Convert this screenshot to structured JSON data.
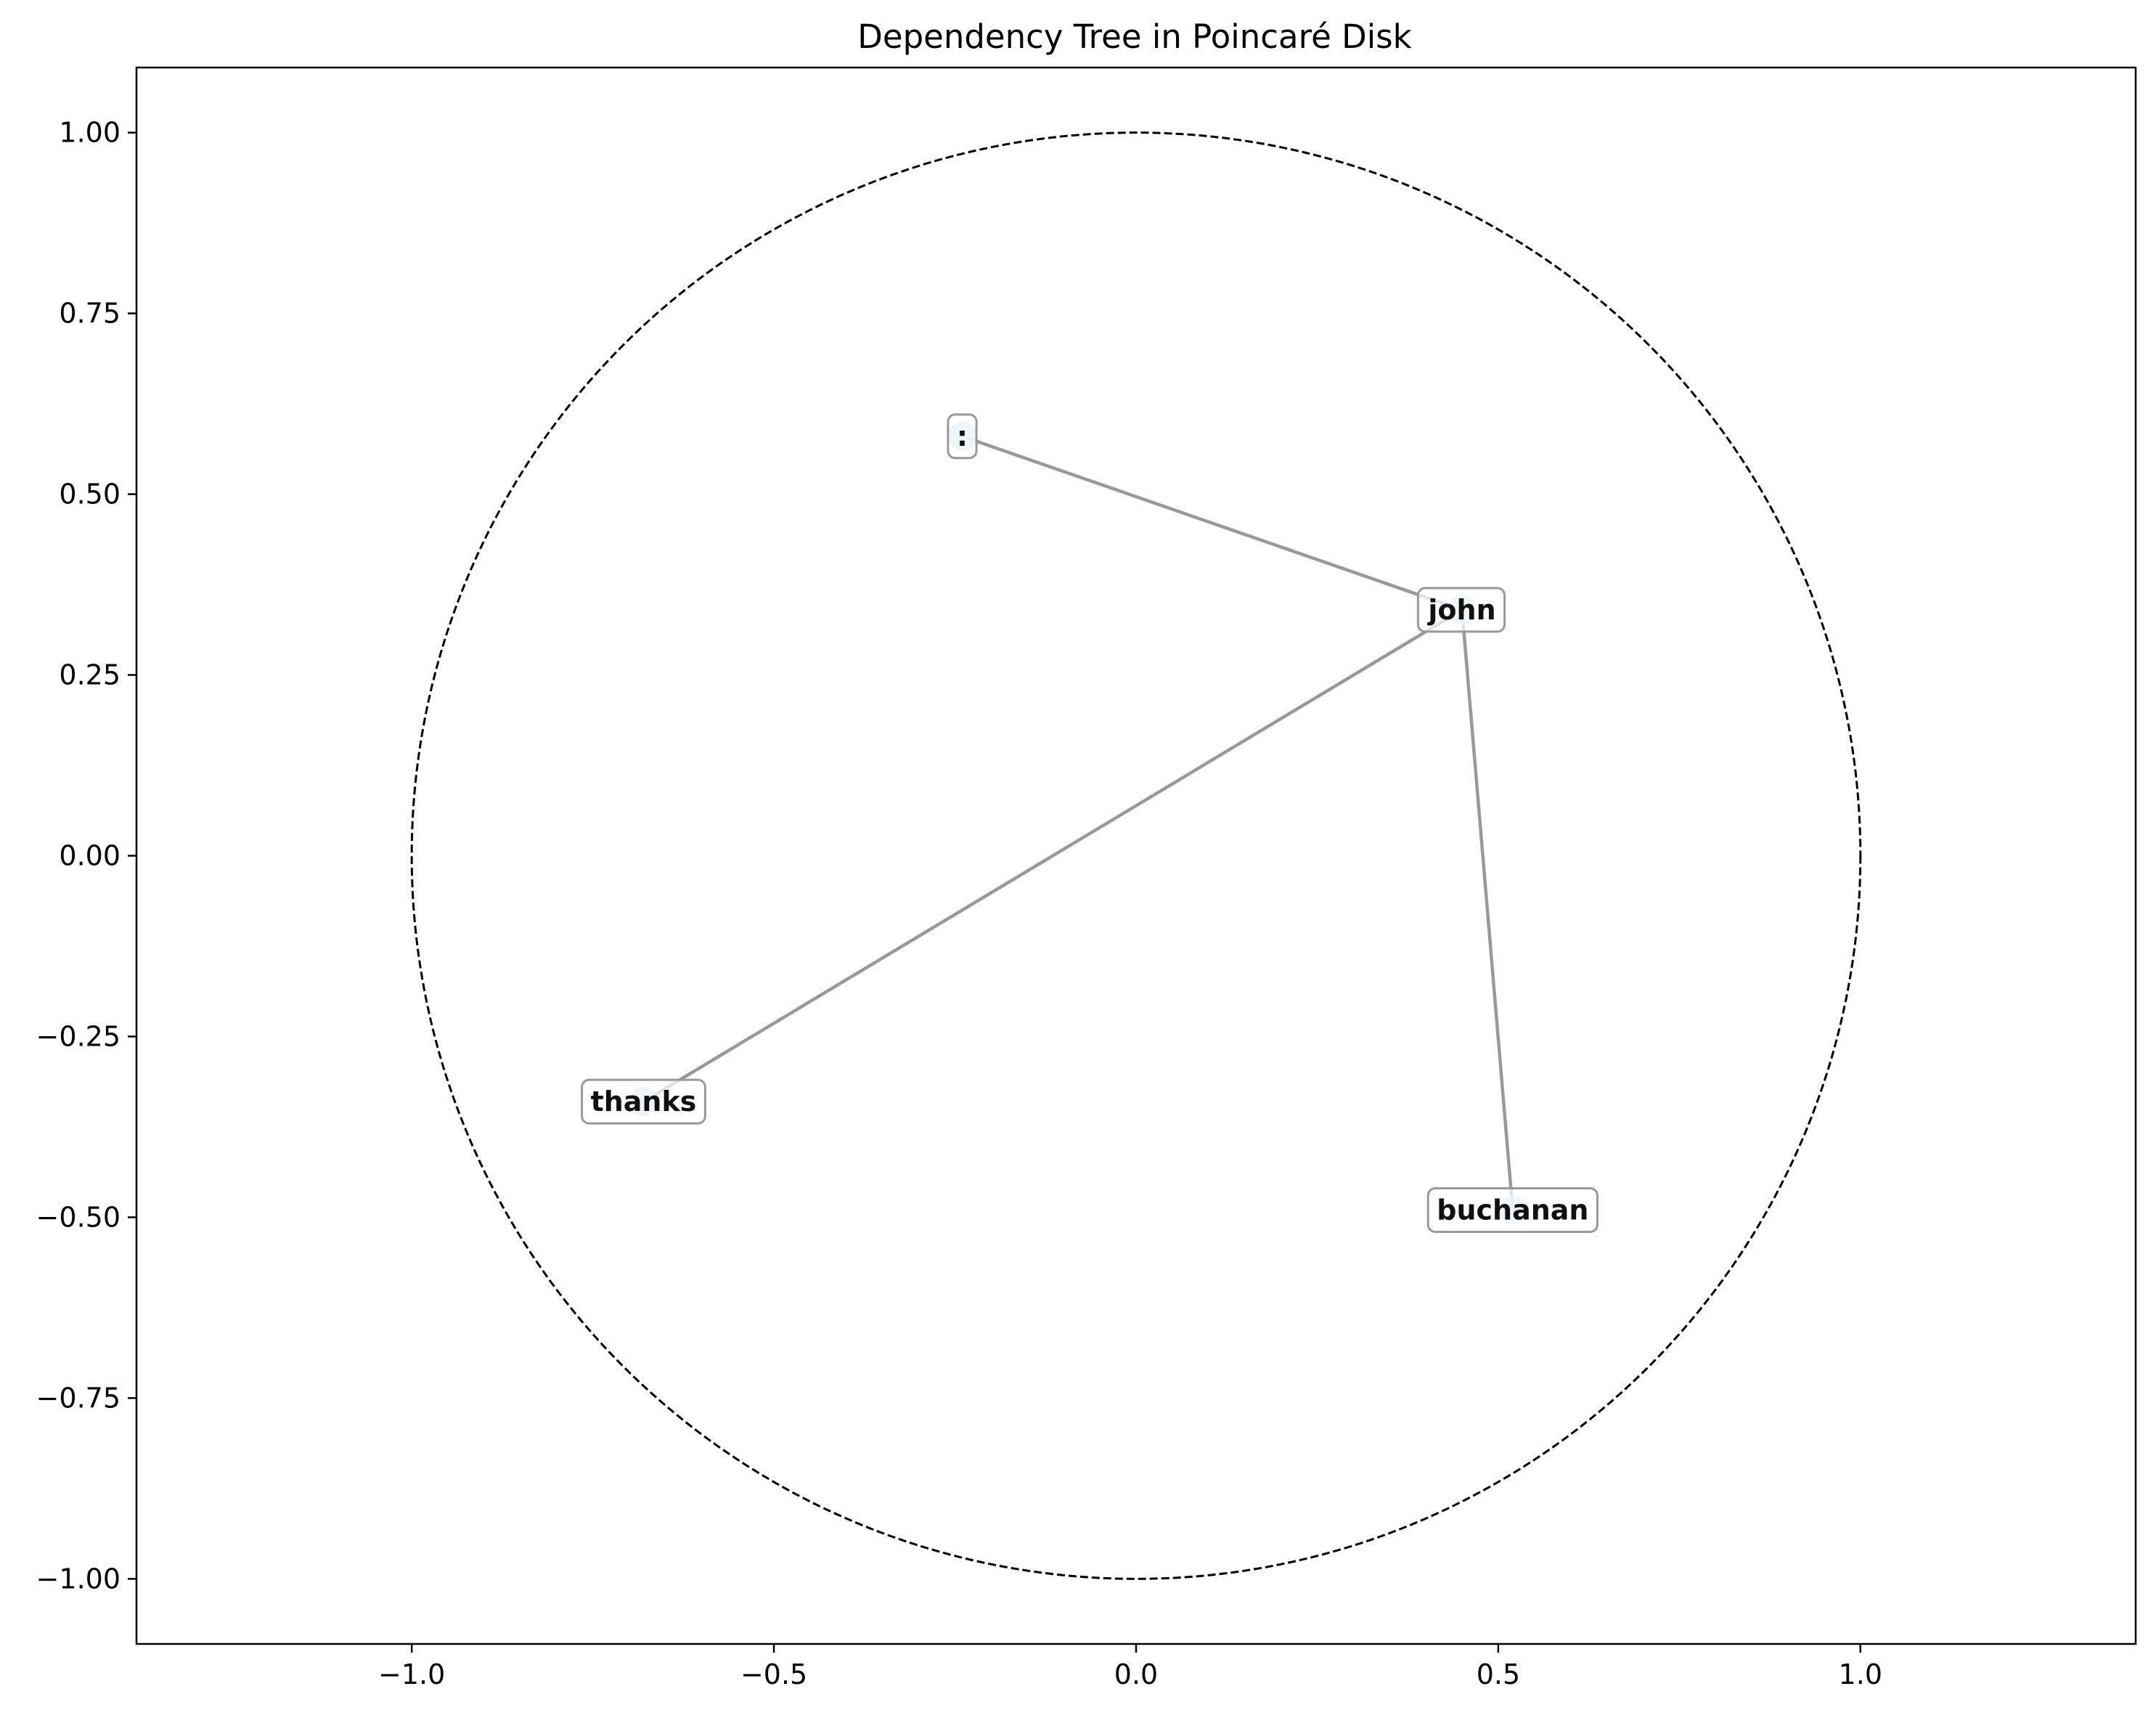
{
  "chart_data": {
    "type": "scatter",
    "title": "Dependency Tree in Poincaré Disk",
    "xlabel": "",
    "ylabel": "",
    "xlim": [
      -1.38,
      1.38
    ],
    "ylim": [
      -1.09,
      1.09
    ],
    "xticks": [
      -1.0,
      -0.5,
      0.0,
      0.5,
      1.0
    ],
    "xtick_labels": [
      "−1.0",
      "−0.5",
      "0.0",
      "0.5",
      "1.0"
    ],
    "yticks": [
      1.0,
      0.75,
      0.5,
      0.25,
      0.0,
      -0.25,
      -0.5,
      -0.75,
      -1.0
    ],
    "ytick_labels": [
      "1.00",
      "0.75",
      "0.50",
      "0.25",
      "0.00",
      "−0.25",
      "−0.50",
      "−0.75",
      "−1.00"
    ],
    "grid": false,
    "boundary": {
      "type": "unit-circle",
      "radius": 1.0,
      "style": "dashed",
      "color": "#000000"
    },
    "nodes": [
      {
        "id": "colon",
        "label": ":",
        "x": -0.24,
        "y": 0.58
      },
      {
        "id": "john",
        "label": "john",
        "x": 0.45,
        "y": 0.34
      },
      {
        "id": "thanks",
        "label": "thanks",
        "x": -0.68,
        "y": -0.34
      },
      {
        "id": "buchanan",
        "label": "buchanan",
        "x": 0.52,
        "y": -0.49
      }
    ],
    "edges": [
      {
        "source": "john",
        "target": "colon"
      },
      {
        "source": "john",
        "target": "thanks"
      },
      {
        "source": "john",
        "target": "buchanan"
      }
    ],
    "colors": {
      "edge": "#999999",
      "node": "#bdd7ee",
      "label_box_border": "#999999",
      "label_box_fill": "#ffffff"
    }
  }
}
